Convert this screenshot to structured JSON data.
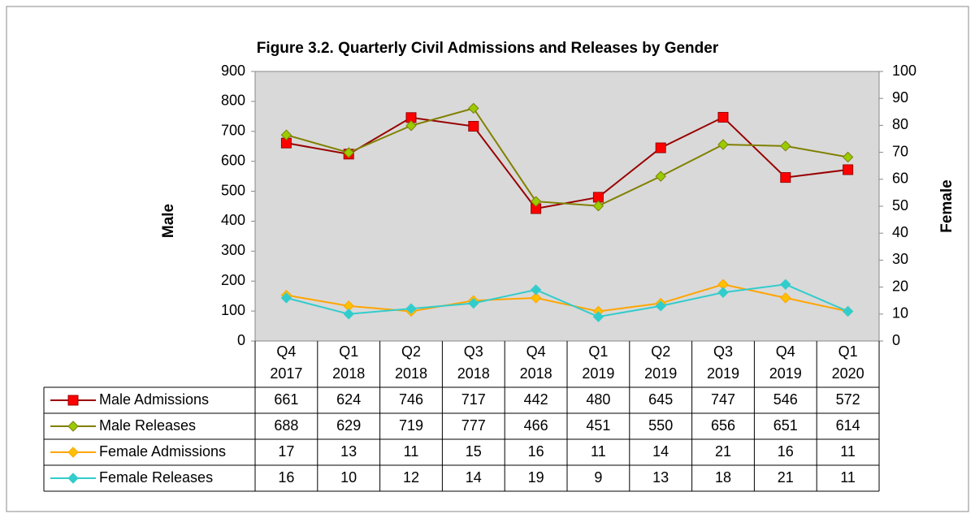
{
  "chart_data": {
    "type": "line",
    "title": "Figure 3.2. Quarterly Civil Admissions and Releases by Gender",
    "y_label": "Male",
    "y2_label": "Female",
    "categories": [
      [
        "Q4",
        "2017"
      ],
      [
        "Q1",
        "2018"
      ],
      [
        "Q2",
        "2018"
      ],
      [
        "Q3",
        "2018"
      ],
      [
        "Q4",
        "2018"
      ],
      [
        "Q1",
        "2019"
      ],
      [
        "Q2",
        "2019"
      ],
      [
        "Q3",
        "2019"
      ],
      [
        "Q4",
        "2019"
      ],
      [
        "Q1",
        "2020"
      ]
    ],
    "ylim": [
      0,
      900
    ],
    "yticks": [
      0,
      100,
      200,
      300,
      400,
      500,
      600,
      700,
      800,
      900
    ],
    "y2lim": [
      0,
      100
    ],
    "y2ticks": [
      0,
      10,
      20,
      30,
      40,
      50,
      60,
      70,
      80,
      90,
      100
    ],
    "grid": false,
    "series": [
      {
        "name": "Male Admissions",
        "color": "#990000",
        "marker_color": "#ff0000",
        "marker": "square",
        "values": [
          661,
          624,
          746,
          717,
          442,
          480,
          645,
          747,
          546,
          572
        ]
      },
      {
        "name": "Male Releases",
        "color": "#808000",
        "marker_color": "#99cc00",
        "marker": "diamond",
        "values": [
          688,
          629,
          719,
          777,
          466,
          451,
          550,
          656,
          651,
          614
        ]
      },
      {
        "name": "Female Admissions",
        "color": "#ffa500",
        "marker_color": "#ffc000",
        "marker": "diamond",
        "axis": "y2",
        "values": [
          17,
          13,
          11,
          15,
          16,
          11,
          14,
          21,
          16,
          11
        ]
      },
      {
        "name": "Female Releases",
        "color": "#33cccc",
        "marker_color": "#33cccc",
        "marker": "diamond",
        "axis": "y2",
        "values": [
          16,
          10,
          12,
          14,
          19,
          9,
          13,
          18,
          21,
          11
        ]
      }
    ]
  }
}
